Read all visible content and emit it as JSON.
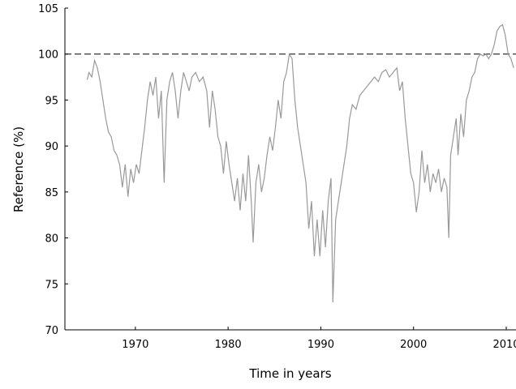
{
  "chart_data": {
    "type": "line",
    "x_label": "Time in years",
    "y_label": "Reference (%)",
    "xlim": [
      1962.4,
      2011.05
    ],
    "ylim": [
      70,
      105
    ],
    "xticks": [
      1970,
      1980,
      1990,
      2000,
      2010
    ],
    "yticks": [
      70,
      75,
      80,
      85,
      90,
      95,
      100,
      105
    ],
    "reference_line": 100,
    "series": [
      {
        "color": "#999999",
        "x": [
          1964.8,
          1965.0,
          1965.3,
          1965.6,
          1965.9,
          1966.2,
          1966.5,
          1966.8,
          1967.1,
          1967.4,
          1967.7,
          1968.0,
          1968.3,
          1968.6,
          1968.9,
          1969.2,
          1969.5,
          1969.8,
          1970.1,
          1970.4,
          1970.7,
          1971.0,
          1971.3,
          1971.6,
          1971.9,
          1972.2,
          1972.5,
          1972.8,
          1973.1,
          1973.4,
          1973.7,
          1974.0,
          1974.3,
          1974.6,
          1974.9,
          1975.2,
          1975.5,
          1975.8,
          1976.1,
          1976.5,
          1976.9,
          1977.3,
          1977.7,
          1978.0,
          1978.3,
          1978.6,
          1978.9,
          1979.2,
          1979.5,
          1979.8,
          1980.1,
          1980.4,
          1980.7,
          1981.0,
          1981.3,
          1981.6,
          1981.9,
          1982.2,
          1982.5,
          1982.7,
          1983.0,
          1983.3,
          1983.6,
          1983.9,
          1984.2,
          1984.5,
          1984.8,
          1985.1,
          1985.4,
          1985.7,
          1986.0,
          1986.3,
          1986.6,
          1986.9,
          1987.2,
          1987.5,
          1987.8,
          1988.1,
          1988.4,
          1988.7,
          1989.0,
          1989.3,
          1989.6,
          1989.9,
          1990.2,
          1990.5,
          1990.8,
          1991.1,
          1991.3,
          1991.6,
          1991.9,
          1992.2,
          1992.5,
          1992.8,
          1993.1,
          1993.4,
          1993.8,
          1994.2,
          1994.6,
          1995.0,
          1995.4,
          1995.8,
          1996.2,
          1996.6,
          1997.0,
          1997.4,
          1997.8,
          1998.2,
          1998.5,
          1998.8,
          1999.1,
          1999.4,
          1999.7,
          2000.0,
          2000.3,
          2000.6,
          2000.9,
          2001.2,
          2001.5,
          2001.8,
          2002.1,
          2002.4,
          2002.7,
          2003.0,
          2003.3,
          2003.6,
          2003.8,
          2004.0,
          2004.3,
          2004.6,
          2004.8,
          2005.1,
          2005.4,
          2005.7,
          2006.0,
          2006.3,
          2006.6,
          2006.9,
          2007.2,
          2007.5,
          2007.8,
          2008.1,
          2008.4,
          2008.7,
          2009.0,
          2009.3,
          2009.6,
          2009.9,
          2010.2,
          2010.5,
          2010.8
        ],
        "values": [
          97.2,
          98,
          97.5,
          99.3,
          98.5,
          97,
          95,
          93,
          91.5,
          91,
          89.5,
          89,
          88,
          85.5,
          88,
          84.5,
          87.5,
          86,
          88,
          87,
          89.5,
          92,
          95,
          97,
          95.5,
          97.5,
          93,
          96,
          86,
          95,
          97,
          98,
          96,
          93,
          96,
          98,
          97,
          96,
          97.5,
          98,
          97,
          97.5,
          96,
          92,
          96,
          94,
          91,
          90,
          87,
          90.5,
          88,
          86,
          84,
          86.5,
          83,
          87,
          84,
          89,
          84,
          79.5,
          86,
          88,
          85,
          86.5,
          89,
          91,
          89.5,
          92,
          95,
          93,
          97,
          98,
          100,
          99.5,
          95,
          92,
          90,
          88,
          86,
          81,
          84,
          78,
          82,
          78,
          83,
          79,
          84,
          86.5,
          73,
          82,
          84,
          86,
          88,
          90,
          93,
          94.5,
          94,
          95.5,
          96,
          96.5,
          97,
          97.5,
          97,
          98,
          98.3,
          97.5,
          98,
          98.5,
          96,
          97,
          93,
          90,
          87,
          86,
          82.8,
          85,
          89.5,
          86,
          88,
          85,
          87,
          86,
          87.5,
          85,
          86.5,
          85.5,
          80,
          89,
          91,
          93,
          89,
          93.5,
          91,
          95,
          96,
          97.5,
          98,
          99.5,
          100,
          99.8,
          100,
          99.5,
          100,
          101,
          102.5,
          103,
          103.2,
          102,
          100,
          99.5,
          98.5
        ]
      }
    ]
  }
}
